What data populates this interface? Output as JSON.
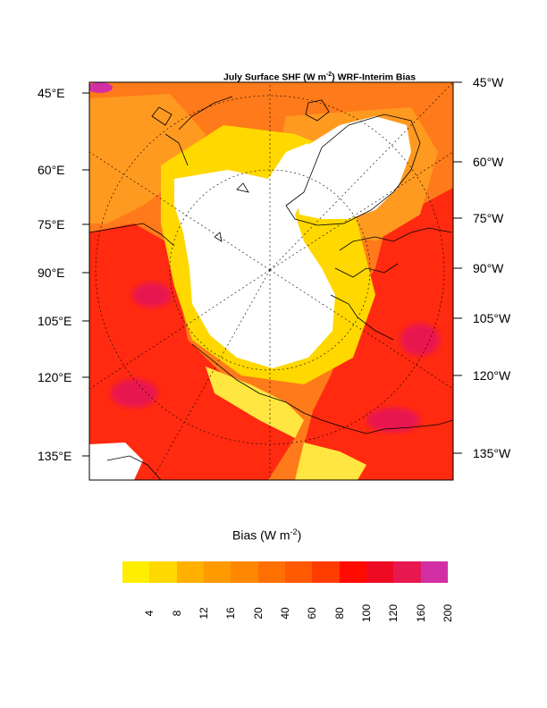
{
  "title": {
    "prefix": "July Surface SHF (W m",
    "exponent": "-2",
    "suffix": ") WRF-Interim Bias"
  },
  "left_labels": [
    "45°E",
    "60°E",
    "75°E",
    "90°E",
    "105°E",
    "120°E",
    "135°E"
  ],
  "right_labels": [
    "45°W",
    "60°W",
    "75°W",
    "90°W",
    "105°W",
    "120°W",
    "135°W"
  ],
  "legend": {
    "title_prefix": "Bias (W m",
    "title_exponent": "-2",
    "title_suffix": ")",
    "levels": [
      "4",
      "8",
      "12",
      "16",
      "20",
      "40",
      "60",
      "80",
      "100",
      "120",
      "160",
      "200"
    ],
    "colors": [
      "#ffee00",
      "#ffd800",
      "#ffb000",
      "#ff9a00",
      "#ff8800",
      "#ff7000",
      "#ff5a00",
      "#ff3c00",
      "#ff0a00",
      "#ee0a22",
      "#e81850",
      "#d22fa4"
    ]
  },
  "map_colors": {
    "ice_white": "#ffffff",
    "land_orange": "#ff7a1a",
    "warm_red": "#ff2a10",
    "coast": "#000000"
  }
}
